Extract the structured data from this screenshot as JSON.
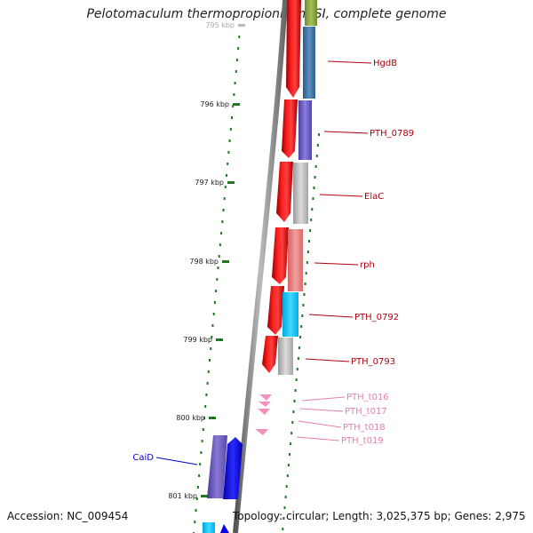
{
  "title": "Pelotomaculum thermopropionicum SI, complete genome",
  "footer": {
    "accession": "Accession: NC_009454",
    "summary": "Topology: circular; Length: 3,025,375 bp; Genes: 2,975"
  },
  "map": {
    "ticks": [
      {
        "label": "795 kbp",
        "faded": true
      },
      {
        "label": "796 kbp"
      },
      {
        "label": "797 kbp"
      },
      {
        "label": "798 kbp"
      },
      {
        "label": "799 kbp"
      },
      {
        "label": "800 kbp"
      },
      {
        "label": "801 kbp"
      }
    ],
    "genes_right": [
      {
        "name": "HgdB",
        "color": "#b0000d"
      },
      {
        "name": "PTH_0789",
        "color": "#b0000d"
      },
      {
        "name": "ElaC",
        "color": "#b0000d"
      },
      {
        "name": "rph",
        "color": "#b0000d"
      },
      {
        "name": "PTH_0792",
        "color": "#b0000d"
      },
      {
        "name": "PTH_0793",
        "color": "#b0000d"
      },
      {
        "name": "PTH_t016",
        "color": "#e47fae"
      },
      {
        "name": "PTH_t017",
        "color": "#e47fae"
      },
      {
        "name": "PTH_t018",
        "color": "#e47fae"
      },
      {
        "name": "PTH_t019",
        "color": "#e47fae"
      }
    ],
    "genes_left": [
      {
        "name": "CaiD",
        "color": "#0000cc"
      }
    ],
    "colors": {
      "backbone": "#777777",
      "tick": "#1f7a1f",
      "cds_strand": "#ee0000",
      "trna": "#f48fc0",
      "reverse_strand": "#0000ee"
    }
  }
}
